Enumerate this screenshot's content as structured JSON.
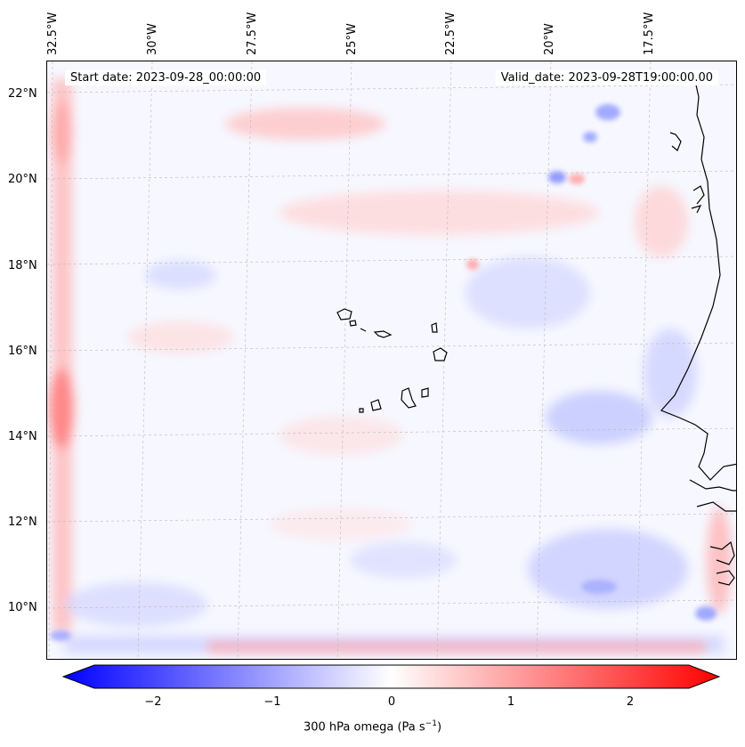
{
  "map": {
    "start_label": "Start date: 2023-09-28_00:00:00",
    "valid_label": "Valid_date: 2023-09-28T19:00:00.00",
    "lon_labels": [
      "32.5°W",
      "30°W",
      "27.5°W",
      "25°W",
      "22.5°W",
      "20°W",
      "17.5°W"
    ],
    "lat_labels": [
      "22°N",
      "20°N",
      "18°N",
      "16°N",
      "14°N",
      "12°N",
      "10°N"
    ],
    "variable": "300 hPa omega",
    "colormap": "bwr",
    "colors": {
      "negative": "#0000ff",
      "zero": "#ffffff",
      "positive": "#ff0000"
    }
  },
  "colorbar": {
    "ticks": [
      "−2",
      "−1",
      "0",
      "1",
      "2"
    ],
    "tick_values": [
      -2,
      -1,
      0,
      1,
      2
    ],
    "range": [
      -2.75,
      2.75
    ],
    "label_main": "300 hPa omega (Pa s",
    "label_sup": "−1",
    "label_end": ")"
  }
}
